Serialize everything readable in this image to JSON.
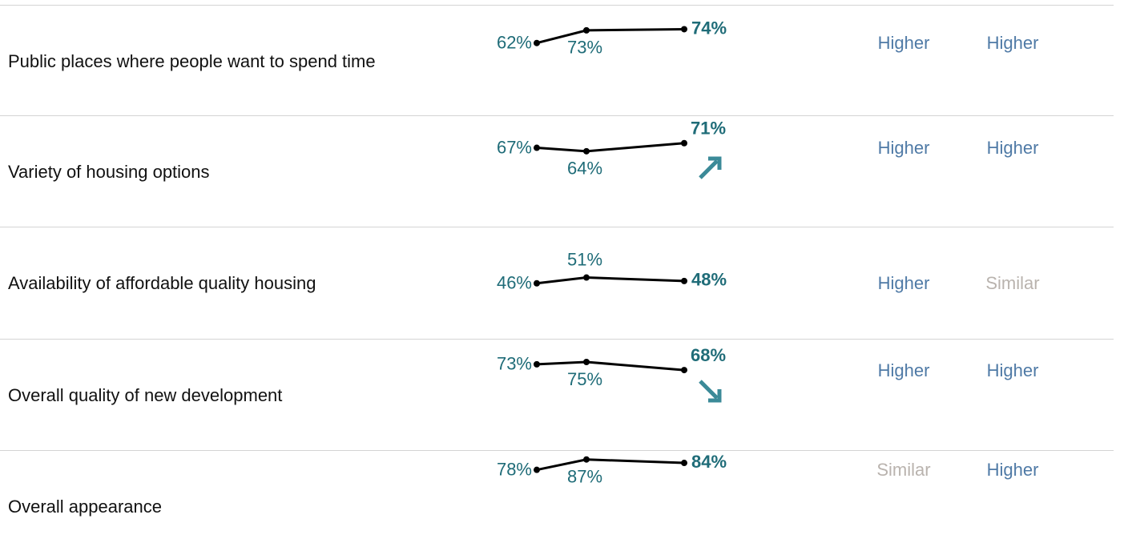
{
  "rows": [
    {
      "label": "Public places where people want to spend time",
      "values": [
        62,
        73,
        74
      ],
      "value_labels": [
        "62%",
        "73%",
        "74%"
      ],
      "comparisons": [
        {
          "text": "Higher",
          "color": "#4f7aa6"
        },
        {
          "text": "Higher",
          "color": "#4f7aa6"
        }
      ]
    },
    {
      "label": "Variety of housing options",
      "values": [
        67,
        64,
        71
      ],
      "value_labels": [
        "67%",
        "64%",
        "71%"
      ],
      "trend": "up",
      "comparisons": [
        {
          "text": "Higher",
          "color": "#4f7aa6"
        },
        {
          "text": "Higher",
          "color": "#4f7aa6"
        }
      ]
    },
    {
      "label": "Availability of affordable quality housing",
      "values": [
        46,
        51,
        48
      ],
      "value_labels": [
        "46%",
        "51%",
        "48%"
      ],
      "comparisons": [
        {
          "text": "Higher",
          "color": "#4f7aa6"
        },
        {
          "text": "Similar",
          "color": "#b9b3ae"
        }
      ]
    },
    {
      "label": "Overall quality of new development",
      "values": [
        73,
        75,
        68
      ],
      "value_labels": [
        "73%",
        "75%",
        "68%"
      ],
      "trend": "down",
      "comparisons": [
        {
          "text": "Higher",
          "color": "#4f7aa6"
        },
        {
          "text": "Higher",
          "color": "#4f7aa6"
        }
      ]
    },
    {
      "label": "Overall appearance",
      "values": [
        78,
        87,
        84
      ],
      "value_labels": [
        "78%",
        "87%",
        "84%"
      ],
      "comparisons": [
        {
          "text": "Similar",
          "color": "#b9b3ae"
        },
        {
          "text": "Higher",
          "color": "#4f7aa6"
        }
      ]
    }
  ]
}
